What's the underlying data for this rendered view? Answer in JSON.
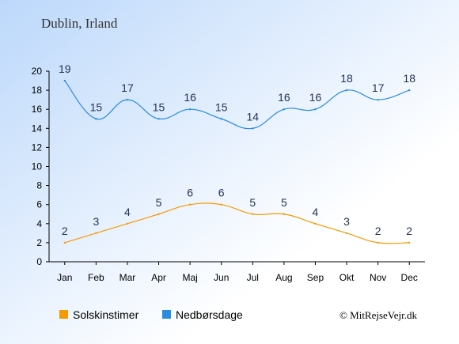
{
  "title": "Dublin, Irland",
  "credit": "© MitRejseVejr.dk",
  "chart_data": {
    "type": "line",
    "categories": [
      "Jan",
      "Feb",
      "Mar",
      "Apr",
      "Maj",
      "Jun",
      "Jul",
      "Aug",
      "Sep",
      "Okt",
      "Nov",
      "Dec"
    ],
    "ylim": [
      0,
      20
    ],
    "yticks": [
      0,
      2,
      4,
      6,
      8,
      10,
      12,
      14,
      16,
      18,
      20
    ],
    "grid": false,
    "legend_position": "bottom",
    "series": [
      {
        "name": "Solskinstimer",
        "color": "#f59a00",
        "values": [
          2,
          3,
          4,
          5,
          6,
          6,
          5,
          5,
          4,
          3,
          2,
          2
        ]
      },
      {
        "name": "Nedbørsdage",
        "color": "#2a8ce0",
        "values": [
          19,
          15,
          17,
          15,
          16,
          15,
          14,
          16,
          16,
          18,
          17,
          18
        ]
      }
    ]
  }
}
